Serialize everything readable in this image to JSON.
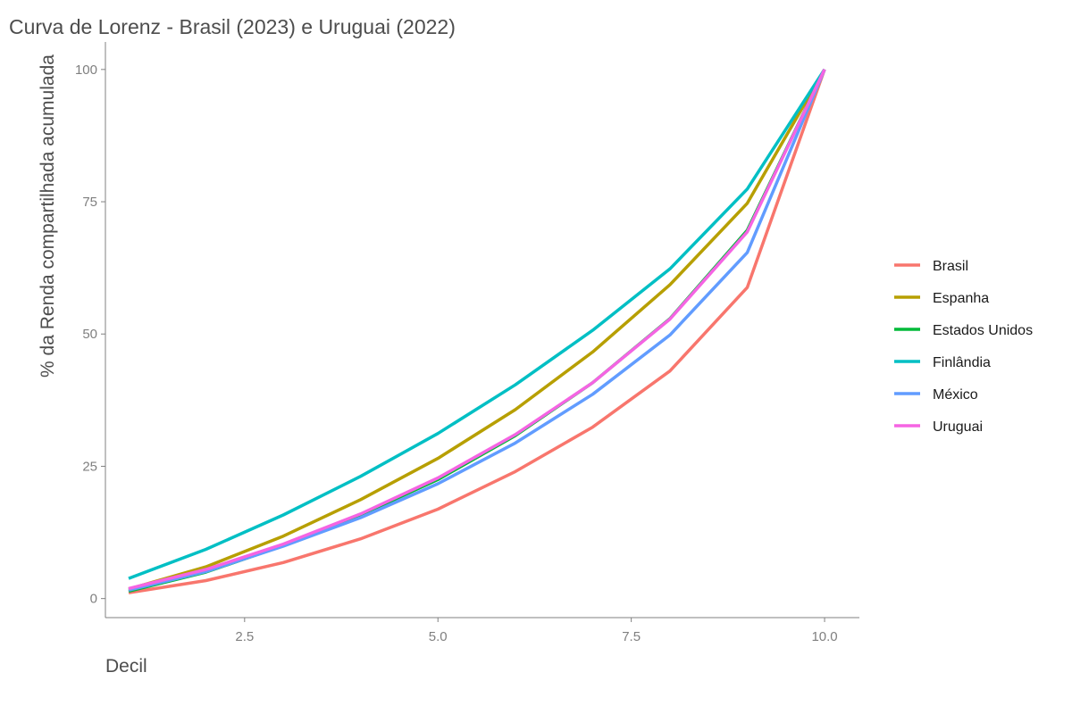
{
  "chart_data": {
    "type": "line",
    "title": "Curva de Lorenz - Brasil (2023) e Uruguai (2022)",
    "xlabel": "Decil",
    "ylabel": "% da Renda compartilhada acumulada",
    "xlim": [
      0.7,
      10.45
    ],
    "ylim": [
      -3.6,
      105.2
    ],
    "x_ticks": [
      2.5,
      5.0,
      7.5,
      10.0
    ],
    "x_tick_labels": [
      "2.5",
      "5.0",
      "7.5",
      "10.0"
    ],
    "y_ticks": [
      0,
      25,
      50,
      75,
      100
    ],
    "y_tick_labels": [
      "0",
      "25",
      "50",
      "75",
      "100"
    ],
    "grid": false,
    "legend_position": "right",
    "x": [
      1,
      2,
      3,
      4,
      5,
      6,
      7,
      8,
      9,
      10
    ],
    "series": [
      {
        "name": "Brasil",
        "color": "#F8766D",
        "values": [
          1.1,
          3.4,
          6.8,
          11.3,
          16.9,
          24.0,
          32.4,
          43.0,
          58.8,
          100
        ]
      },
      {
        "name": "Espanha",
        "color": "#B79F00",
        "values": [
          1.8,
          6.0,
          11.8,
          18.7,
          26.5,
          35.7,
          46.6,
          59.3,
          74.7,
          100
        ]
      },
      {
        "name": "Estados Unidos",
        "color": "#00BA38",
        "values": [
          1.4,
          5.0,
          10.0,
          15.8,
          22.5,
          30.8,
          40.8,
          52.9,
          69.6,
          100
        ]
      },
      {
        "name": "Finlândia",
        "color": "#00BFC4",
        "values": [
          3.8,
          9.3,
          15.8,
          23.1,
          31.2,
          40.4,
          50.7,
          62.3,
          77.4,
          100
        ]
      },
      {
        "name": "México",
        "color": "#619CFF",
        "values": [
          1.6,
          5.1,
          9.9,
          15.3,
          21.7,
          29.4,
          38.6,
          49.8,
          65.4,
          100
        ]
      },
      {
        "name": "Uruguai",
        "color": "#F564E3",
        "values": [
          1.9,
          5.5,
          10.3,
          16.0,
          22.8,
          31.0,
          40.8,
          52.8,
          69.3,
          100
        ]
      }
    ]
  }
}
